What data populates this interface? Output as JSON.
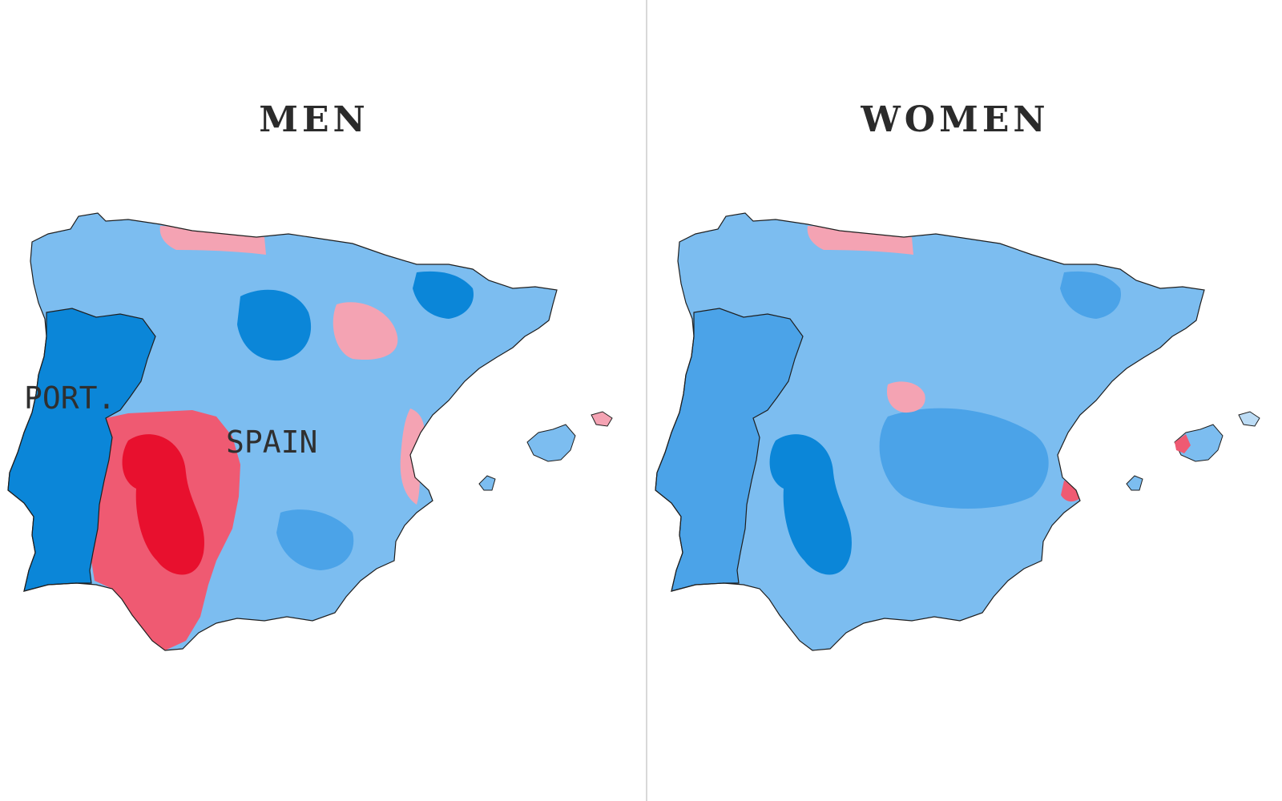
{
  "colors": {
    "background": "#ffffff",
    "divider": "#d9d9d9",
    "outline": "#1f1f1f",
    "scale": {
      "red_deep": "#e8102e",
      "red": "#ef5a72",
      "red_light": "#f4a3b3",
      "pink_pale": "#fbd9df",
      "blue_pale": "#bcdcf5",
      "blue_light": "#7cbdf0",
      "blue": "#4ba3e8",
      "blue_deep": "#0b86d8"
    }
  },
  "panels": [
    {
      "title": "MEN",
      "labels": {
        "portugal": "PORT.",
        "spain": "SPAIN"
      },
      "portugal_color": "blue_deep",
      "spain_base_color": "blue_light",
      "regions": {
        "south_west": "red",
        "south_core": "red_deep",
        "north_coast": "red_light",
        "north_east_patch": "red_light",
        "east_coast": "red_light",
        "center_dark": "blue_deep",
        "north_east_dark": "blue_deep",
        "south_east": "blue",
        "mallorca": "blue_light",
        "menorca": "red_light"
      }
    },
    {
      "title": "WOMEN",
      "labels": {},
      "portugal_color": "blue",
      "spain_base_color": "blue_light",
      "regions": {
        "south_core": "blue_deep",
        "center_band": "blue",
        "north_coast": "red_light",
        "madrid_patch": "red_light",
        "east_tip": "red",
        "north_east_dark": "blue",
        "mallorca": "blue_light",
        "mallorca_west": "red",
        "menorca": "blue_pale"
      }
    }
  ]
}
